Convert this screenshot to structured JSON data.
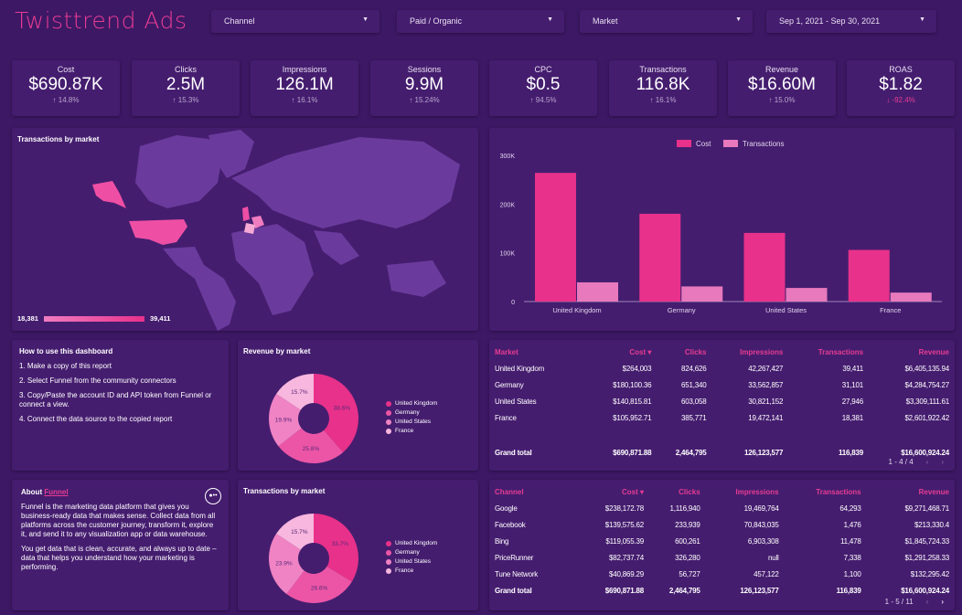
{
  "header": {
    "title": "Twisttrend Ads",
    "filters": [
      {
        "label": "Channel"
      },
      {
        "label": "Paid / Organic"
      },
      {
        "label": "Market"
      },
      {
        "label": "Sep 1, 2021 - Sep 30, 2021"
      }
    ]
  },
  "kpis": [
    {
      "label": "Cost",
      "value": "$690.87K",
      "change": "↑ 14.8%",
      "negative": false
    },
    {
      "label": "Clicks",
      "value": "2.5M",
      "change": "↑ 15.3%",
      "negative": false
    },
    {
      "label": "Impressions",
      "value": "126.1M",
      "change": "↑ 16.1%",
      "negative": false
    },
    {
      "label": "Sessions",
      "value": "9.9M",
      "change": "↑ 15.24%",
      "negative": false
    },
    {
      "label": "CPC",
      "value": "$0.5",
      "change": "↑ 94.5%",
      "negative": false
    },
    {
      "label": "Transactions",
      "value": "116.8K",
      "change": "↑ 16.1%",
      "negative": false
    },
    {
      "label": "Revenue",
      "value": "$16.60M",
      "change": "↑ 15.0%",
      "negative": false
    },
    {
      "label": "ROAS",
      "value": "$1.82",
      "change": "↓ -92.4%",
      "negative": true
    }
  ],
  "map": {
    "title": "Transactions by market",
    "min_label": "18,381",
    "max_label": "39,411",
    "highlighted": [
      "United States",
      "United Kingdom",
      "Germany",
      "France"
    ]
  },
  "colors": {
    "accent": "#e63c92",
    "bg": "#3d1865",
    "card": "#451d6f",
    "slices": [
      "#e8318a",
      "#ec55a6",
      "#f083c4",
      "#f8b7de"
    ]
  },
  "chart_data": [
    {
      "type": "bar",
      "title": "",
      "categories": [
        "United Kingdom",
        "Germany",
        "United States",
        "France"
      ],
      "series": [
        {
          "name": "Cost",
          "color": "#e8318a",
          "values": [
            264003,
            180100.36,
            140815.81,
            105952.71
          ]
        },
        {
          "name": "Transactions",
          "color": "#e879bd",
          "values": [
            39411,
            31101,
            27946,
            18381
          ]
        }
      ],
      "yticks": [
        "0",
        "100K",
        "200K",
        "300K"
      ],
      "ylim": [
        0,
        300000
      ],
      "legend": "top-center"
    },
    {
      "type": "pie",
      "title": "Revenue by market",
      "labels": [
        "United Kingdom",
        "Germany",
        "United States",
        "France"
      ],
      "values": [
        38.6,
        25.8,
        19.9,
        15.7
      ],
      "value_labels": [
        "38.6%",
        "25.8%",
        "19.9%",
        "15.7%"
      ]
    },
    {
      "type": "pie",
      "title": "Transactions by market",
      "labels": [
        "United Kingdom",
        "Germany",
        "United States",
        "France"
      ],
      "values": [
        33.7,
        26.6,
        23.9,
        15.7
      ],
      "value_labels": [
        "33.7%",
        "26.6%",
        "23.9%",
        "15.7%"
      ]
    }
  ],
  "howto": {
    "title": "How to use this dashboard",
    "steps": [
      "1. Make a copy of this report",
      "2. Select Funnel from the community connectors",
      "3. Copy/Paste the account ID and API token from Funnel or connect a view.",
      "4. Connect the data source to the copied report"
    ]
  },
  "about": {
    "prefix": "About ",
    "link": "Funnel",
    "p1": "Funnel is the marketing data platform that gives you business-ready data that makes sense. Collect data from all platforms across the customer journey, transform it, explore it, and send it to any visualization app or data warehouse.",
    "p2": "You get data that is clean, accurate, and always up to date – data that helps you understand how your marketing is performing."
  },
  "market_table": {
    "headers": [
      "Market",
      "Cost ▾",
      "Clicks",
      "Impressions",
      "Transactions",
      "Revenue"
    ],
    "rows": [
      [
        "United Kingdom",
        "$264,003",
        "824,626",
        "42,267,427",
        "39,411",
        "$6,405,135.94"
      ],
      [
        "Germany",
        "$180,100.36",
        "651,340",
        "33,562,857",
        "31,101",
        "$4,284,754.27"
      ],
      [
        "United States",
        "$140,815.81",
        "603,058",
        "30,821,152",
        "27,946",
        "$3,309,111.61"
      ],
      [
        "France",
        "$105,952.71",
        "385,771",
        "19,472,141",
        "18,381",
        "$2,601,922.42"
      ]
    ],
    "total": [
      "Grand total",
      "$690,871.88",
      "2,464,795",
      "126,123,577",
      "116,839",
      "$16,600,924.24"
    ],
    "pager": "1 - 4 / 4"
  },
  "channel_table": {
    "headers": [
      "Channel",
      "Cost ▾",
      "Clicks",
      "Impressions",
      "Transactions",
      "Revenue"
    ],
    "rows": [
      [
        "Google",
        "$238,172.78",
        "1,116,940",
        "19,469,764",
        "64,293",
        "$9,271,468.71"
      ],
      [
        "Facebook",
        "$139,575.62",
        "233,939",
        "70,843,035",
        "1,476",
        "$213,330.4"
      ],
      [
        "Bing",
        "$119,055.39",
        "600,261",
        "6,903,308",
        "11,478",
        "$1,845,724.33"
      ],
      [
        "PriceRunner",
        "$82,737.74",
        "326,280",
        "null",
        "7,338",
        "$1,291,258.33"
      ],
      [
        "Tune Network",
        "$40,869.29",
        "56,727",
        "457,122",
        "1,100",
        "$132,295.42"
      ]
    ],
    "total": [
      "Grand total",
      "$690,871.88",
      "2,464,795",
      "126,123,577",
      "116,839",
      "$16,600,924.24"
    ],
    "pager": "1 - 5 / 11"
  }
}
